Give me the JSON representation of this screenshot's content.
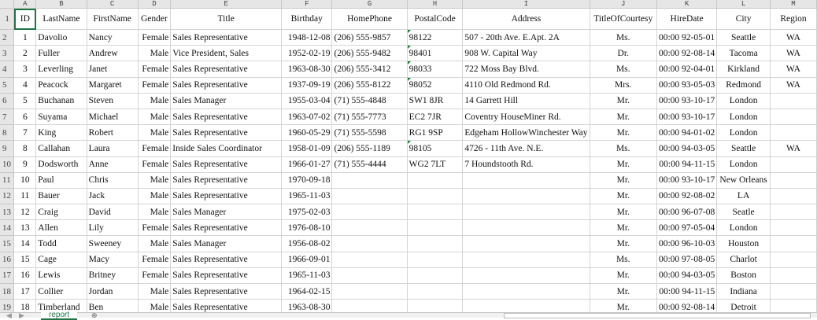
{
  "columns": [
    "A",
    "B",
    "C",
    "D",
    "E",
    "F",
    "G",
    "H",
    "I",
    "J",
    "K",
    "L",
    "M"
  ],
  "headers": [
    "ID",
    "LastName",
    "FirstName",
    "Gender",
    "Title",
    "Birthday",
    "HomePhone",
    "PostalCode",
    "Address",
    "TitleOfCourtesy",
    "HireDate",
    "City",
    "Region"
  ],
  "rows": [
    [
      "1",
      "Davolio",
      "Nancy",
      "Female",
      "Sales Representative",
      "1948-12-08",
      "(206) 555-9857",
      "98122",
      "507 - 20th Ave. E.Apt. 2A",
      "Ms.",
      "92-05-01 00:00",
      "Seattle",
      "WA"
    ],
    [
      "2",
      "Fuller",
      "Andrew",
      "Male",
      "Vice President, Sales",
      "1952-02-19",
      "(206) 555-9482",
      "98401",
      "908 W. Capital Way",
      "Dr.",
      "92-08-14 00:00",
      "Tacoma",
      "WA"
    ],
    [
      "3",
      "Leverling",
      "Janet",
      "Female",
      "Sales Representative",
      "1963-08-30",
      "(206) 555-3412",
      "98033",
      "722 Moss Bay Blvd.",
      "Ms.",
      "92-04-01 00:00",
      "Kirkland",
      "WA"
    ],
    [
      "4",
      "Peacock",
      "Margaret",
      "Female",
      "Sales Representative",
      "1937-09-19",
      "(206) 555-8122",
      "98052",
      "4110 Old Redmond Rd.",
      "Mrs.",
      "93-05-03 00:00",
      "Redmond",
      "WA"
    ],
    [
      "5",
      "Buchanan",
      "Steven",
      "Male",
      "Sales Manager",
      "1955-03-04",
      "(71) 555-4848",
      "SW1 8JR",
      "14 Garrett Hill",
      "Mr.",
      "93-10-17 00:00",
      "London",
      ""
    ],
    [
      "6",
      "Suyama",
      "Michael",
      "Male",
      "Sales Representative",
      "1963-07-02",
      "(71) 555-7773",
      "EC2 7JR",
      "Coventry HouseMiner Rd.",
      "Mr.",
      "93-10-17 00:00",
      "London",
      ""
    ],
    [
      "7",
      "King",
      "Robert",
      "Male",
      "Sales Representative",
      "1960-05-29",
      "(71) 555-5598",
      "RG1 9SP",
      "Edgeham HollowWinchester Way",
      "Mr.",
      "94-01-02 00:00",
      "London",
      ""
    ],
    [
      "8",
      "Callahan",
      "Laura",
      "Female",
      "Inside Sales Coordinator",
      "1958-01-09",
      "(206) 555-1189",
      "98105",
      "4726 - 11th Ave. N.E.",
      "Ms.",
      "94-03-05 00:00",
      "Seattle",
      "WA"
    ],
    [
      "9",
      "Dodsworth",
      "Anne",
      "Female",
      "Sales Representative",
      "1966-01-27",
      "(71) 555-4444",
      "WG2 7LT",
      "7 Houndstooth Rd.",
      "Mr.",
      "94-11-15 00:00",
      "London",
      ""
    ],
    [
      "10",
      "Paul",
      "Chris",
      "Male",
      "Sales Representative",
      "1970-09-18",
      "",
      "",
      "",
      "Mr.",
      "93-10-17 00:00",
      "New Orleans",
      ""
    ],
    [
      "11",
      "Bauer",
      "Jack",
      "Male",
      "Sales Representative",
      "1965-11-03",
      "",
      "",
      "",
      "Mr.",
      "92-08-02 00:00",
      "LA",
      ""
    ],
    [
      "12",
      "Craig",
      "David",
      "Male",
      "Sales Manager",
      "1975-02-03",
      "",
      "",
      "",
      "Mr.",
      "96-07-08 00:00",
      "Seatle",
      ""
    ],
    [
      "13",
      "Allen",
      "Lily",
      "Female",
      "Sales Representative",
      "1976-08-10",
      "",
      "",
      "",
      "Mr.",
      "97-05-04 00:00",
      "London",
      ""
    ],
    [
      "14",
      "Todd",
      "Sweeney",
      "Male",
      "Sales Manager",
      "1956-08-02",
      "",
      "",
      "",
      "Mr.",
      "96-10-03 00:00",
      "Houston",
      ""
    ],
    [
      "15",
      "Cage",
      "Macy",
      "Female",
      "Sales Representative",
      "1966-09-01",
      "",
      "",
      "",
      "Ms.",
      "97-08-05 00:00",
      "Charlot",
      ""
    ],
    [
      "16",
      "Lewis",
      "Britney",
      "Female",
      "Sales Representative",
      "1965-11-03",
      "",
      "",
      "",
      "Mr.",
      "94-03-05 00:00",
      "Boston",
      ""
    ],
    [
      "17",
      "Collier",
      "Jordan",
      "Male",
      "Sales Representative",
      "1964-02-15",
      "",
      "",
      "",
      "Mr.",
      "94-11-15 00:00",
      "Indiana",
      ""
    ],
    [
      "18",
      "Timberland",
      "Ben",
      "Male",
      "Sales Representative",
      "1963-08-30",
      "",
      "",
      "",
      "Mr.",
      "92-08-14 00:00",
      "Detroit",
      ""
    ]
  ],
  "sheet_tab": "report",
  "add_sheet_icon": "plus-circle-icon",
  "accent_color": "#217346"
}
